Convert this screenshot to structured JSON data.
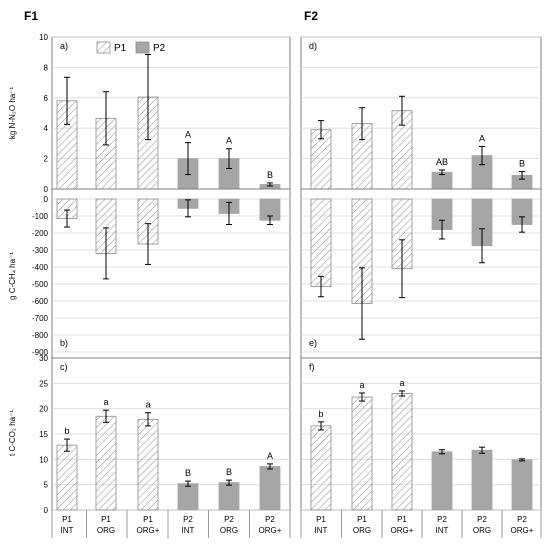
{
  "figure": {
    "col_titles": [
      "F1",
      "F2"
    ],
    "legend": [
      {
        "label": "P1",
        "style": "hatched"
      },
      {
        "label": "P2",
        "style": "solid",
        "color": "#a6a6a6"
      }
    ],
    "categories": [
      {
        "p": "P1",
        "t": "INT"
      },
      {
        "p": "P1",
        "t": "ORG"
      },
      {
        "p": "P1",
        "t": "ORG+"
      },
      {
        "p": "P2",
        "t": "INT"
      },
      {
        "p": "P2",
        "t": "ORG"
      },
      {
        "p": "P2",
        "t": "ORG+"
      }
    ],
    "colors": {
      "p1_stroke": "#8c8c8c",
      "p2_fill": "#a6a6a6",
      "grid": "#d9d9d9",
      "axis": "#7f7f7f",
      "error": "#000000"
    }
  },
  "chart_data": [
    {
      "panel": "a",
      "column": "F1",
      "type": "bar",
      "ylabel": "kg N-N₂O ha⁻¹",
      "ylim": [
        0,
        10
      ],
      "yticks": [
        0,
        2,
        4,
        6,
        8,
        10
      ],
      "grid": true,
      "values": [
        5.8,
        4.65,
        6.05,
        2.0,
        2.0,
        0.3
      ],
      "errors": [
        1.55,
        1.75,
        2.8,
        1.05,
        0.65,
        0.1
      ],
      "letters": [
        "",
        "",
        "",
        "A",
        "A",
        "B"
      ]
    },
    {
      "panel": "d",
      "column": "F2",
      "type": "bar",
      "ylim": [
        0,
        10
      ],
      "yticks": [
        0,
        2,
        4,
        6,
        8,
        10
      ],
      "grid": true,
      "values": [
        3.9,
        4.3,
        5.15,
        1.1,
        2.2,
        0.9
      ],
      "errors": [
        0.6,
        1.05,
        0.95,
        0.15,
        0.6,
        0.25
      ],
      "letters": [
        "",
        "",
        "",
        "AB",
        "A",
        "B"
      ]
    },
    {
      "panel": "b",
      "column": "F1",
      "type": "bar",
      "ylabel": "g C-CH₄ ha⁻¹",
      "ylim": [
        -900,
        0
      ],
      "yticks": [
        0,
        -100,
        -200,
        -300,
        -400,
        -500,
        -600,
        -700,
        -800,
        -900
      ],
      "grid": true,
      "values": [
        -115,
        -320,
        -265,
        -55,
        -85,
        -125
      ],
      "errors": [
        50,
        150,
        120,
        50,
        65,
        25
      ],
      "letters": [
        "",
        "",
        "",
        "",
        "",
        ""
      ]
    },
    {
      "panel": "e",
      "column": "F2",
      "type": "bar",
      "ylim": [
        -900,
        0
      ],
      "yticks": [
        0,
        -100,
        -200,
        -300,
        -400,
        -500,
        -600,
        -700,
        -800,
        -900
      ],
      "grid": true,
      "values": [
        -515,
        -615,
        -410,
        -180,
        -275,
        -150
      ],
      "errors": [
        60,
        210,
        170,
        55,
        100,
        45
      ],
      "letters": [
        "",
        "",
        "",
        "",
        "",
        ""
      ]
    },
    {
      "panel": "c",
      "column": "F1",
      "type": "bar",
      "ylabel": "t C-CO₂ ha⁻¹",
      "ylim": [
        0,
        30
      ],
      "yticks": [
        0,
        5,
        10,
        15,
        20,
        25,
        30
      ],
      "grid": true,
      "values": [
        12.8,
        18.5,
        17.9,
        5.2,
        5.4,
        8.6
      ],
      "errors": [
        1.2,
        1.2,
        1.3,
        0.5,
        0.5,
        0.5
      ],
      "letters": [
        "b",
        "a",
        "a",
        "B",
        "B",
        "A"
      ]
    },
    {
      "panel": "f",
      "column": "F2",
      "type": "bar",
      "ylim": [
        0,
        30
      ],
      "yticks": [
        0,
        5,
        10,
        15,
        20,
        25,
        30
      ],
      "grid": true,
      "values": [
        16.6,
        22.3,
        23.0,
        11.5,
        11.8,
        9.9
      ],
      "errors": [
        0.8,
        0.8,
        0.5,
        0.4,
        0.6,
        0.2
      ],
      "letters": [
        "b",
        "a",
        "a",
        "",
        "",
        ""
      ]
    }
  ]
}
